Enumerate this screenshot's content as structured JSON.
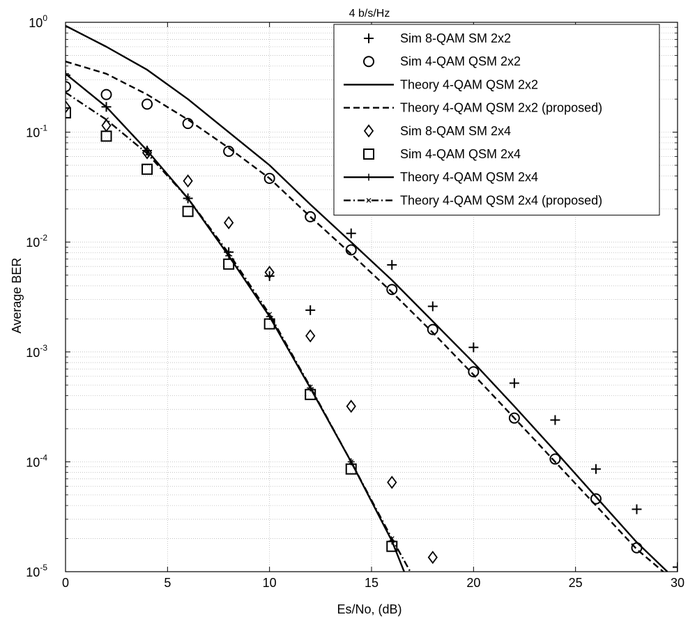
{
  "chart_data": {
    "type": "line",
    "title": "4 b/s/Hz",
    "xlabel": "Es/No, (dB)",
    "ylabel": "Average BER",
    "xlim": [
      0,
      30
    ],
    "ylim": [
      1e-05,
      1
    ],
    "yscale": "log",
    "grid": true,
    "legend_position": "top-right",
    "x_ticks": [
      "0",
      "5",
      "10",
      "15",
      "20",
      "25",
      "30"
    ],
    "y_ticks": [
      {
        "base": "10",
        "exp": "0",
        "value": 1
      },
      {
        "base": "10",
        "exp": "-1",
        "value": 0.1
      },
      {
        "base": "10",
        "exp": "-2",
        "value": 0.01
      },
      {
        "base": "10",
        "exp": "-3",
        "value": 0.001
      },
      {
        "base": "10",
        "exp": "-4",
        "value": 0.0001
      },
      {
        "base": "10",
        "exp": "-5",
        "value": 1e-05
      }
    ],
    "series": [
      {
        "name": "Sim 8-QAM SM 2x2",
        "style": "markers",
        "marker": "plus",
        "x": [
          0,
          2,
          4,
          6,
          8,
          10,
          12,
          14,
          16,
          18,
          20,
          22,
          24,
          26,
          28,
          30
        ],
        "y": [
          0.33,
          0.17,
          0.068,
          0.025,
          0.0081,
          0.0049,
          0.0024,
          0.012,
          0.0062,
          0.0026,
          0.0011,
          0.00052,
          0.00024,
          8.6e-05,
          3.7e-05,
          1.1e-05
        ]
      },
      {
        "name": "Sim 4-QAM QSM 2x2",
        "style": "markers",
        "marker": "circle",
        "x": [
          0,
          2,
          4,
          6,
          8,
          10,
          12,
          14,
          16,
          18,
          20,
          22,
          24,
          26,
          28
        ],
        "y": [
          0.26,
          0.22,
          0.18,
          0.12,
          0.067,
          0.038,
          0.017,
          0.0085,
          0.0037,
          0.0016,
          0.00066,
          0.00025,
          0.000106,
          4.6e-05,
          1.65e-05
        ]
      },
      {
        "name": "Theory 4-QAM QSM 2x2",
        "style": "solid",
        "x": [
          0,
          2,
          4,
          6,
          8,
          10,
          12,
          14,
          16,
          18,
          20,
          22,
          24,
          26,
          28,
          29.5
        ],
        "y": [
          0.93,
          0.6,
          0.37,
          0.2,
          0.1,
          0.05,
          0.022,
          0.01,
          0.0045,
          0.0019,
          0.0008,
          0.00032,
          0.000125,
          4.8e-05,
          1.85e-05,
          1e-05
        ]
      },
      {
        "name": "Theory 4-QAM QSM 2x2 (proposed)",
        "style": "dashed",
        "x": [
          0,
          2,
          4,
          6,
          8,
          10,
          12,
          14,
          16,
          18,
          20,
          22,
          24,
          26,
          28,
          29.3
        ],
        "y": [
          0.44,
          0.34,
          0.22,
          0.13,
          0.072,
          0.038,
          0.017,
          0.0078,
          0.0035,
          0.0015,
          0.00062,
          0.00025,
          0.0001,
          4e-05,
          1.6e-05,
          1e-05
        ]
      },
      {
        "name": "Sim 8-QAM SM 2x4",
        "style": "markers",
        "marker": "diamond",
        "x": [
          0,
          2,
          4,
          6,
          8,
          10,
          12,
          14,
          16,
          18
        ],
        "y": [
          0.17,
          0.115,
          0.065,
          0.036,
          0.015,
          0.0053,
          0.0014,
          0.00032,
          6.5e-05,
          1.35e-05
        ]
      },
      {
        "name": "Sim 4-QAM QSM 2x4",
        "style": "markers",
        "marker": "square",
        "x": [
          0,
          2,
          4,
          6,
          8,
          10,
          12,
          14,
          16
        ],
        "y": [
          0.15,
          0.092,
          0.046,
          0.019,
          0.0063,
          0.0018,
          0.00041,
          8.6e-05,
          1.7e-05
        ]
      },
      {
        "name": "Theory 4-QAM QSM 2x4",
        "style": "solid-plus",
        "x": [
          0,
          2,
          4,
          6,
          8,
          10,
          12,
          14,
          16,
          16.6
        ],
        "y": [
          0.34,
          0.17,
          0.068,
          0.025,
          0.0075,
          0.0021,
          0.00047,
          0.0001,
          1.9e-05,
          1e-05
        ]
      },
      {
        "name": "Theory 4-QAM QSM 2x4 (proposed)",
        "style": "dashdot-x",
        "x": [
          0,
          2,
          4,
          6,
          8,
          10,
          12,
          14,
          16,
          16.9
        ],
        "y": [
          0.23,
          0.13,
          0.064,
          0.025,
          0.0079,
          0.0022,
          0.00048,
          0.0001,
          2e-05,
          1e-05
        ]
      }
    ]
  }
}
